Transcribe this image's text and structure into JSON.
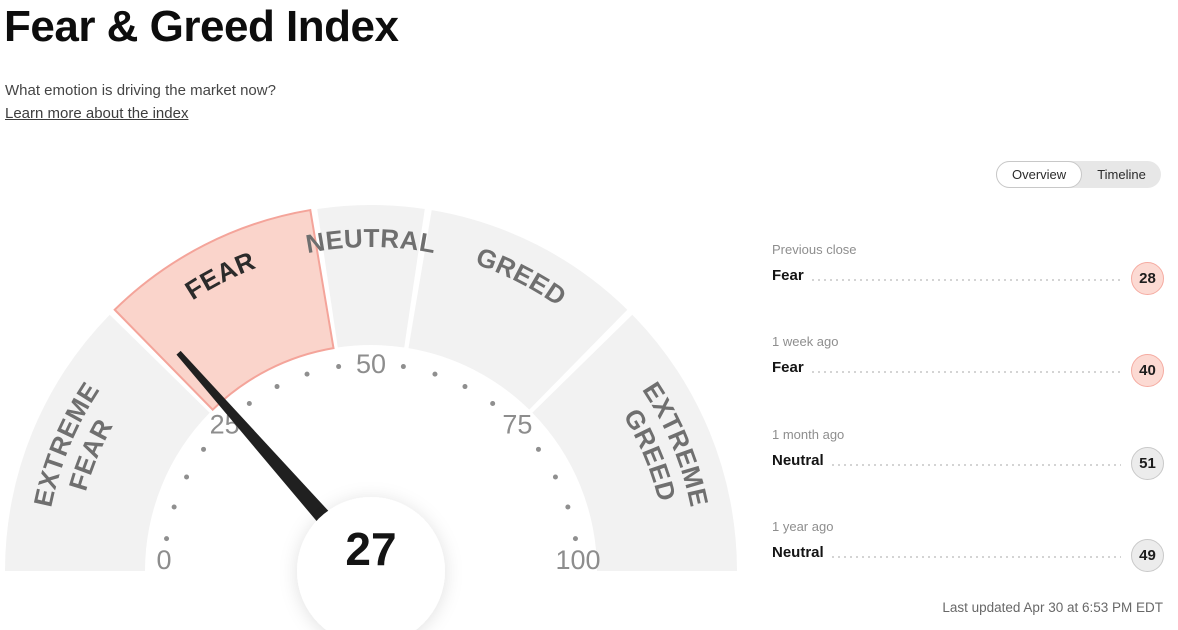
{
  "page": {
    "title": "Fear & Greed Index",
    "subtitle": "What emotion is driving the market now?",
    "link": "Learn more about the index",
    "last_updated": "Last updated Apr 30 at 6:53 PM EDT"
  },
  "toggle": {
    "options": [
      {
        "label": "Overview",
        "selected": true
      },
      {
        "label": "Timeline",
        "selected": false
      }
    ]
  },
  "chart_data": {
    "type": "gauge",
    "title": "Fear & Greed Index",
    "value": 27,
    "value_label": "27",
    "min": 0,
    "max": 100,
    "axis_ticks": [
      0,
      25,
      50,
      75,
      100
    ],
    "dot_step": 5,
    "segments": [
      {
        "label": "EXTREME FEAR",
        "lines": [
          "EXTREME",
          "FEAR"
        ],
        "from": 0,
        "to": 25,
        "active": false
      },
      {
        "label": "FEAR",
        "lines": [
          "FEAR"
        ],
        "from": 25,
        "to": 45,
        "active": true
      },
      {
        "label": "NEUTRAL",
        "lines": [
          "NEUTRAL"
        ],
        "from": 45,
        "to": 55,
        "active": false
      },
      {
        "label": "GREED",
        "lines": [
          "GREED"
        ],
        "from": 55,
        "to": 75,
        "active": false
      },
      {
        "label": "EXTREME GREED",
        "lines": [
          "EXTREME",
          "GREED"
        ],
        "from": 75,
        "to": 100,
        "active": false
      }
    ],
    "colors": {
      "inactive_fill": "#f2f2f2",
      "active_fill": "#fad4cb",
      "active_stroke": "#f4a49a",
      "label_inactive": "#6f6f6f",
      "label_active": "#2b2b2b",
      "tick_number": "#8d8d8d",
      "tick_dot": "#8f8f8f",
      "needle": "#202020",
      "value_text": "#141414"
    }
  },
  "history": [
    {
      "period": "Previous close",
      "label": "Fear",
      "value": "28",
      "tone": "fear"
    },
    {
      "period": "1 week ago",
      "label": "Fear",
      "value": "40",
      "tone": "fear"
    },
    {
      "period": "1 month ago",
      "label": "Neutral",
      "value": "51",
      "tone": "neutral"
    },
    {
      "period": "1 year ago",
      "label": "Neutral",
      "value": "49",
      "tone": "neutral"
    }
  ]
}
